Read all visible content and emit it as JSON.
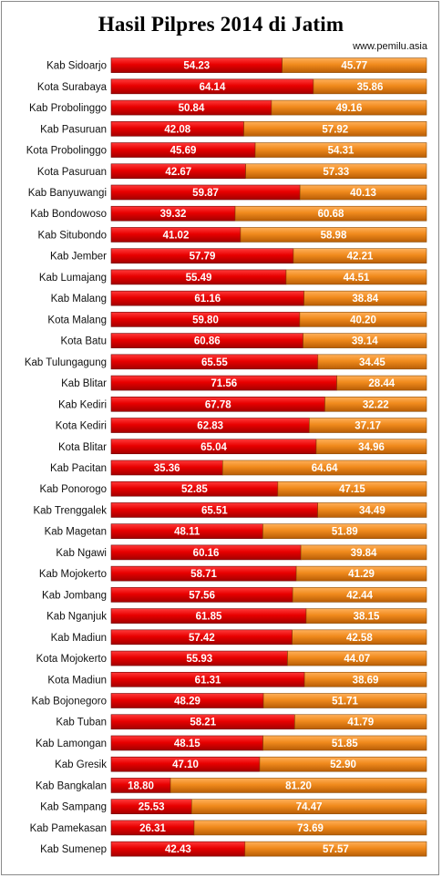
{
  "chart_data": {
    "type": "bar",
    "stacked": true,
    "orientation": "horizontal",
    "title": "Hasil Pilpres 2014 di Jatim",
    "source": "www.pemilu.asia",
    "xlim": [
      0,
      100
    ],
    "categories": [
      "Kab Sidoarjo",
      "Kota Surabaya",
      "Kab Probolinggo",
      "Kab Pasuruan",
      "Kota Probolinggo",
      "Kota Pasuruan",
      "Kab Banyuwangi",
      "Kab Bondowoso",
      "Kab Situbondo",
      "Kab Jember",
      "Kab Lumajang",
      "Kab Malang",
      "Kota Malang",
      "Kota Batu",
      "Kab Tulungagung",
      "Kab Blitar",
      "Kab Kediri",
      "Kota Kediri",
      "Kota Blitar",
      "Kab Pacitan",
      "Kab Ponorogo",
      "Kab Trenggalek",
      "Kab Magetan",
      "Kab Ngawi",
      "Kab Mojokerto",
      "Kab Jombang",
      "Kab Nganjuk",
      "Kab Madiun",
      "Kota Mojokerto",
      "Kota Madiun",
      "Kab Bojonegoro",
      "Kab Tuban",
      "Kab Lamongan",
      "Kab Gresik",
      "Kab Bangkalan",
      "Kab Sampang",
      "Kab Pamekasan",
      "Kab Sumenep"
    ],
    "series": [
      {
        "color": "#e80000",
        "values": [
          "54.23",
          "64.14",
          "50.84",
          "42.08",
          "45.69",
          "42.67",
          "59.87",
          "39.32",
          "41.02",
          "57.79",
          "55.49",
          "61.16",
          "59.80",
          "60.86",
          "65.55",
          "71.56",
          "67.78",
          "62.83",
          "65.04",
          "35.36",
          "52.85",
          "65.51",
          "48.11",
          "60.16",
          "58.71",
          "57.56",
          "61.85",
          "57.42",
          "55.93",
          "61.31",
          "48.29",
          "58.21",
          "48.15",
          "47.10",
          "18.80",
          "25.53",
          "26.31",
          "42.43"
        ]
      },
      {
        "color": "#f08a1c",
        "values": [
          "45.77",
          "35.86",
          "49.16",
          "57.92",
          "54.31",
          "57.33",
          "40.13",
          "60.68",
          "58.98",
          "42.21",
          "44.51",
          "38.84",
          "40.20",
          "39.14",
          "34.45",
          "28.44",
          "32.22",
          "37.17",
          "34.96",
          "64.64",
          "47.15",
          "34.49",
          "51.89",
          "39.84",
          "41.29",
          "42.44",
          "38.15",
          "42.58",
          "44.07",
          "38.69",
          "51.71",
          "41.79",
          "51.85",
          "52.90",
          "81.20",
          "74.47",
          "73.69",
          "57.57"
        ]
      }
    ]
  }
}
